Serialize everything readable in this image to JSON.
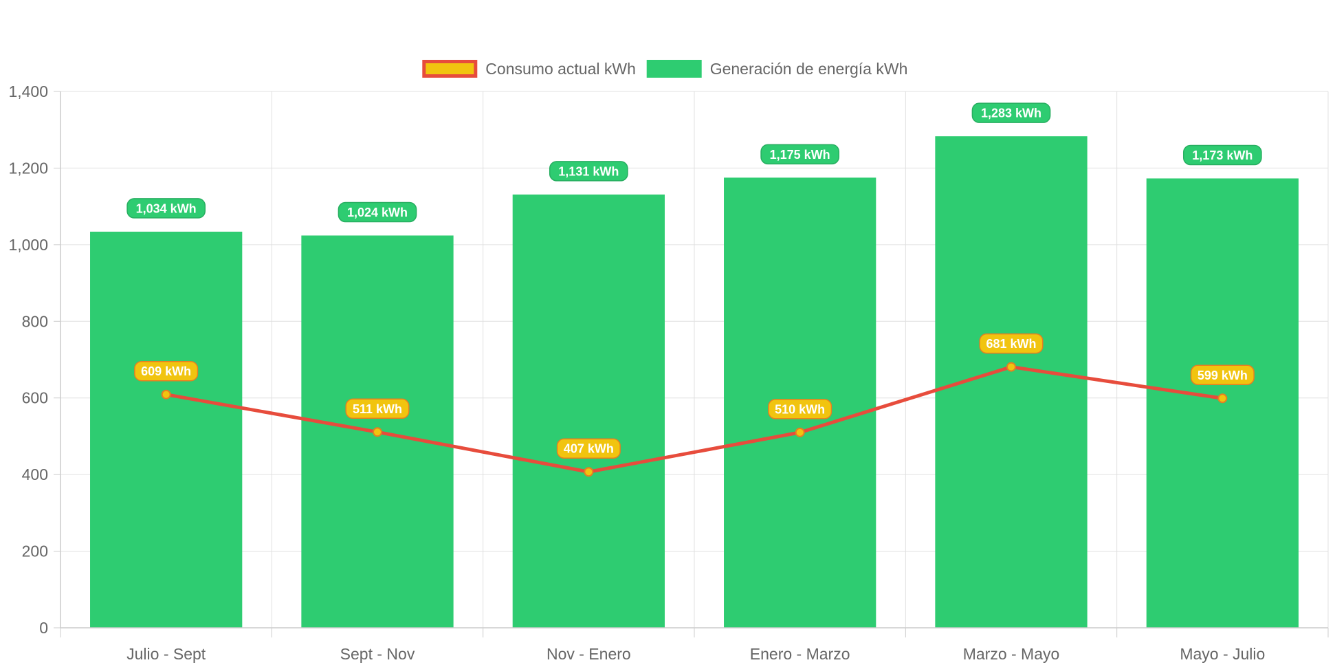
{
  "colors": {
    "bar_fill": "#2ecc71",
    "bar_label_border": "#27ae60",
    "line_stroke": "#e74c3c",
    "point_fill": "#f1c40f",
    "point_label_fill": "#f1c40f",
    "point_label_border": "#e67e22",
    "grid": "#e0e0e0",
    "axis": "#cccccc",
    "tick_text": "#666666"
  },
  "chart_data": {
    "type": "bar",
    "categories": [
      "Julio - Sept",
      "Sept - Nov",
      "Nov - Enero",
      "Enero - Marzo",
      "Marzo - Mayo",
      "Mayo - Julio"
    ],
    "series": [
      {
        "name": "Consumo actual kWh",
        "type": "line",
        "values": [
          609,
          511,
          407,
          510,
          681,
          599
        ],
        "labels": [
          "609 kWh",
          "511 kWh",
          "407 kWh",
          "510 kWh",
          "681 kWh",
          "599 kWh"
        ]
      },
      {
        "name": "Generación de energía kWh",
        "type": "bar",
        "values": [
          1034,
          1024,
          1131,
          1175,
          1283,
          1173
        ],
        "labels": [
          "1,034 kWh",
          "1,024 kWh",
          "1,131 kWh",
          "1,175 kWh",
          "1,283 kWh",
          "1,173 kWh"
        ]
      }
    ],
    "ylim": [
      0,
      1400
    ],
    "yticks": [
      0,
      200,
      400,
      600,
      800,
      1000,
      1200,
      1400
    ],
    "ytick_labels": [
      "0",
      "200",
      "400",
      "600",
      "800",
      "1,000",
      "1,200",
      "1,400"
    ],
    "grid": true,
    "legend_position": "top-center",
    "title": "",
    "xlabel": "",
    "ylabel": ""
  }
}
